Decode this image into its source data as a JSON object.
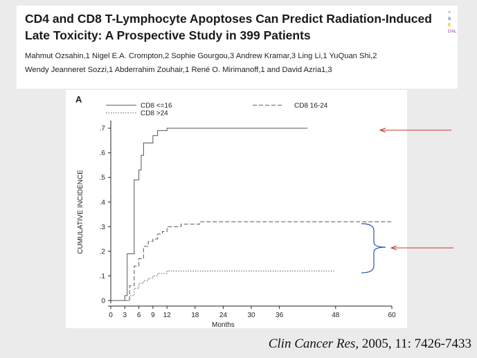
{
  "paper": {
    "title": "CD4 and CD8 T-Lymphocyte Apoptoses Can Predict Radiation-Induced Late Toxicity: A Prospective Study in 399 Patients",
    "authors_line1": "Mahmut Ozsahin,1 Nigel E.A. Crompton,2 Sophie Gourgou,3 Andrew Kramar,3 Ling Li,1 YuQuan Shi,2",
    "authors_line2": "Wendy Jeanneret Sozzi,1 Abderrahim Zouhair,1 René O. Mirimanoff,1 and David Azria1,3",
    "logo_fragments": [
      "re",
      "S",
      "E",
      "DAL"
    ]
  },
  "citation": {
    "journal": "Clin Cancer Res",
    "details": ", 2005, 11: 7426-7433"
  },
  "colors": {
    "arrow": "#c0392b",
    "bracket": "#2e4fb8",
    "series_line": "#555555"
  },
  "chart_data": {
    "type": "line",
    "step": true,
    "panel_label": "A",
    "xlabel": "Months",
    "ylabel": "CUMULATIVE INCIDENCE",
    "xlim": [
      0,
      60
    ],
    "ylim": [
      0,
      0.72
    ],
    "xticks": [
      0,
      3,
      6,
      9,
      12,
      18,
      24,
      30,
      36,
      48,
      60
    ],
    "yticks": [
      0,
      0.1,
      0.2,
      0.3,
      0.4,
      0.5,
      0.6,
      0.7
    ],
    "ytick_labels": [
      "0",
      ".1",
      ".2",
      ".3",
      ".4",
      ".5",
      ".6",
      ".7"
    ],
    "grid": false,
    "legend_position": "top",
    "series": [
      {
        "name": "CD8 <=16",
        "dash": "solid",
        "x": [
          0,
          2,
          3,
          3.5,
          4,
          5,
          6,
          6.5,
          7,
          8,
          9,
          10,
          12,
          42
        ],
        "y": [
          0,
          0,
          0.02,
          0.19,
          0.19,
          0.49,
          0.53,
          0.59,
          0.64,
          0.64,
          0.67,
          0.69,
          0.7,
          0.7
        ]
      },
      {
        "name": "CD8 16-24",
        "dash": "dashed",
        "x": [
          0,
          3,
          4,
          5,
          6,
          7,
          8,
          9,
          10,
          11,
          12,
          13,
          15,
          19,
          60
        ],
        "y": [
          0,
          0,
          0.06,
          0.14,
          0.17,
          0.22,
          0.24,
          0.25,
          0.27,
          0.28,
          0.3,
          0.3,
          0.31,
          0.32,
          0.32
        ]
      },
      {
        "name": "CD8 >24",
        "dash": "dotted",
        "x": [
          0,
          3,
          4,
          5,
          6,
          7,
          8,
          9,
          10,
          11,
          12,
          48
        ],
        "y": [
          0,
          0,
          0.02,
          0.05,
          0.07,
          0.08,
          0.09,
          0.1,
          0.11,
          0.11,
          0.12,
          0.12
        ]
      }
    ]
  }
}
